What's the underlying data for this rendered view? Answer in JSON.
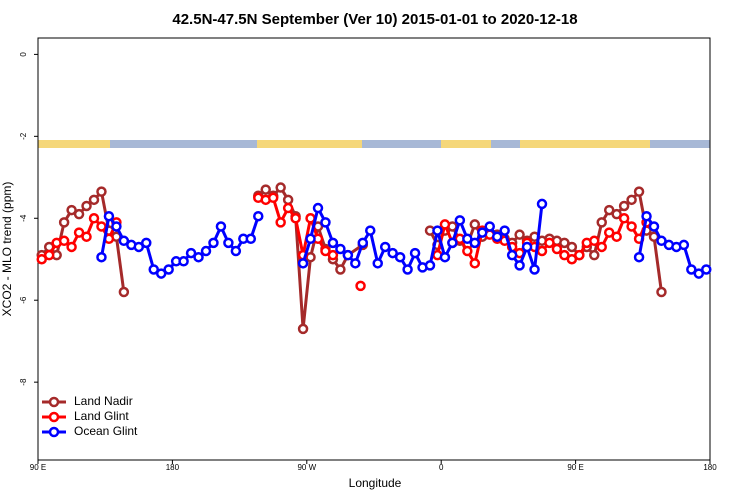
{
  "chart_data": {
    "type": "line",
    "title": "42.5N-47.5N September (Ver 10)   2015-01-01 to 2020-12-18",
    "x_label": "Longitude",
    "y_label": "XCO2 - MLO trend (ppm)",
    "xlim": [
      90,
      540
    ],
    "ylim": [
      -9.9,
      0.4
    ],
    "xticks": [
      {
        "value": 90,
        "label": "90 E"
      },
      {
        "value": 180,
        "label": "180"
      },
      {
        "value": 270,
        "label": "90 W"
      },
      {
        "value": 360,
        "label": "0"
      },
      {
        "value": 450,
        "label": "90 E"
      },
      {
        "value": 540,
        "label": "180"
      }
    ],
    "yticks": [
      0,
      -2,
      -4,
      -6,
      -8
    ],
    "legend": "bottomleft",
    "series": [
      {
        "name": "Land Nadir",
        "color": "#a52a2a",
        "x": [
          92.5,
          97.5,
          102.5,
          107.5,
          112.5,
          117.5,
          122.5,
          127.5,
          132.5,
          137.5,
          142.5,
          147.5,
          200,
          237.5,
          242.5,
          247.5,
          252.5,
          257.5,
          262.5,
          267.5,
          272.5,
          277.5,
          282.5,
          287.5,
          292.5,
          297.5,
          307.5,
          330,
          352.5,
          357.5,
          362.5,
          367.5,
          372.5,
          377.5,
          382.5,
          387.5,
          392.5,
          397.5,
          402.5,
          407.5,
          412.5,
          417.5,
          422.5,
          427.5,
          432.5,
          437.5,
          442.5,
          447.5,
          452.5,
          457.5,
          462.5,
          467.5,
          472.5,
          477.5,
          482.5,
          487.5,
          492.5,
          497.5,
          502.5,
          507.5
        ],
        "values": [
          -4.9,
          -4.7,
          -4.9,
          -4.1,
          -3.8,
          -3.9,
          -3.7,
          -3.55,
          -3.35,
          -4.3,
          -4.45,
          -5.8,
          null,
          -3.45,
          -3.3,
          -3.45,
          -3.25,
          -3.55,
          -3.95,
          -6.7,
          -4.95,
          -4.2,
          -4.75,
          -5.0,
          -5.25,
          -4.9,
          -4.65,
          null,
          -4.3,
          -4.65,
          -4.3,
          -4.2,
          -4.55,
          -4.65,
          -4.15,
          -4.45,
          -4.35,
          -4.4,
          -4.5,
          -4.6,
          -4.4,
          -4.55,
          -4.45,
          -4.55,
          -4.5,
          -4.55,
          -4.6,
          -4.7,
          -4.9,
          -4.7,
          -4.9,
          -4.1,
          -3.8,
          -3.9,
          -3.7,
          -3.55,
          -3.35,
          -4.3,
          -4.45,
          -5.8
        ]
      },
      {
        "name": "Land Glint",
        "color": "#ff0000",
        "x": [
          92.5,
          97.5,
          102.5,
          107.5,
          112.5,
          117.5,
          122.5,
          127.5,
          132.5,
          137.5,
          142.5,
          200,
          237.5,
          242.5,
          247.5,
          252.5,
          257.5,
          262.5,
          267.5,
          272.5,
          277.5,
          282.5,
          287.5,
          295,
          306,
          330,
          357.5,
          362.5,
          367.5,
          372.5,
          377.5,
          382.5,
          387.5,
          392.5,
          397.5,
          402.5,
          407.5,
          412.5,
          417.5,
          422.5,
          427.5,
          432.5,
          437.5,
          442.5,
          447.5,
          452.5,
          457.5,
          462.5,
          467.5,
          472.5,
          477.5,
          482.5,
          487.5,
          492.5,
          497.5
        ],
        "values": [
          -5.0,
          -4.9,
          -4.6,
          -4.55,
          -4.7,
          -4.35,
          -4.45,
          -4.0,
          -4.2,
          -4.5,
          -4.1,
          null,
          -3.5,
          -3.55,
          -3.5,
          -4.1,
          -3.75,
          -4.0,
          -4.9,
          -4.0,
          -4.5,
          -4.8,
          -4.9,
          null,
          -5.65,
          null,
          -4.9,
          -4.15,
          -4.6,
          -4.5,
          -4.8,
          -5.1,
          -4.3,
          -4.4,
          -4.5,
          -4.55,
          -4.7,
          -4.85,
          -4.6,
          -4.7,
          -4.8,
          -4.6,
          -4.75,
          -4.9,
          -5.0,
          -4.9,
          -4.6,
          -4.55,
          -4.7,
          -4.35,
          -4.45,
          -4.0,
          -4.2,
          -4.5,
          -4.1
        ]
      },
      {
        "name": "Ocean Glint",
        "color": "#0000ff",
        "x": [
          132.5,
          137.5,
          142.5,
          147.5,
          152.5,
          157.5,
          162.5,
          167.5,
          172.5,
          177.5,
          182.5,
          187.5,
          192.5,
          197.5,
          202.5,
          207.5,
          212.5,
          217.5,
          222.5,
          227.5,
          232.5,
          237.5,
          250,
          267.5,
          272.5,
          277.5,
          282.5,
          287.5,
          292.5,
          297.5,
          302.5,
          307.5,
          312.5,
          317.5,
          322.5,
          327.5,
          332.5,
          337.5,
          342.5,
          347.5,
          352.5,
          357.5,
          362.5,
          367.5,
          372.5,
          377.5,
          382.5,
          387.5,
          392.5,
          397.5,
          402.5,
          407.5,
          412.5,
          417.5,
          422.5,
          427.5,
          460,
          492.5,
          497.5,
          502.5,
          507.5,
          512.5,
          517.5,
          522.5,
          527.5,
          532.5,
          537.5
        ],
        "values": [
          -4.95,
          -3.95,
          -4.2,
          -4.55,
          -4.65,
          -4.7,
          -4.6,
          -5.25,
          -5.35,
          -5.25,
          -5.05,
          -5.05,
          -4.85,
          -4.95,
          -4.8,
          -4.6,
          -4.2,
          -4.6,
          -4.8,
          -4.5,
          -4.5,
          -3.95,
          null,
          -5.1,
          -4.5,
          -3.75,
          -4.1,
          -4.6,
          -4.75,
          -4.9,
          -5.1,
          -4.6,
          -4.3,
          -5.1,
          -4.7,
          -4.85,
          -4.95,
          -5.25,
          -4.85,
          -5.2,
          -5.15,
          -4.3,
          -4.95,
          -4.6,
          -4.05,
          -4.5,
          -4.6,
          -4.35,
          -4.2,
          -4.45,
          -4.3,
          -4.9,
          -5.15,
          -4.7,
          -5.25,
          -3.65,
          null,
          -4.95,
          -3.95,
          -4.2,
          -4.55,
          -4.65,
          -4.7,
          -4.65,
          -5.25,
          -5.35,
          -5.25
        ]
      }
    ]
  }
}
